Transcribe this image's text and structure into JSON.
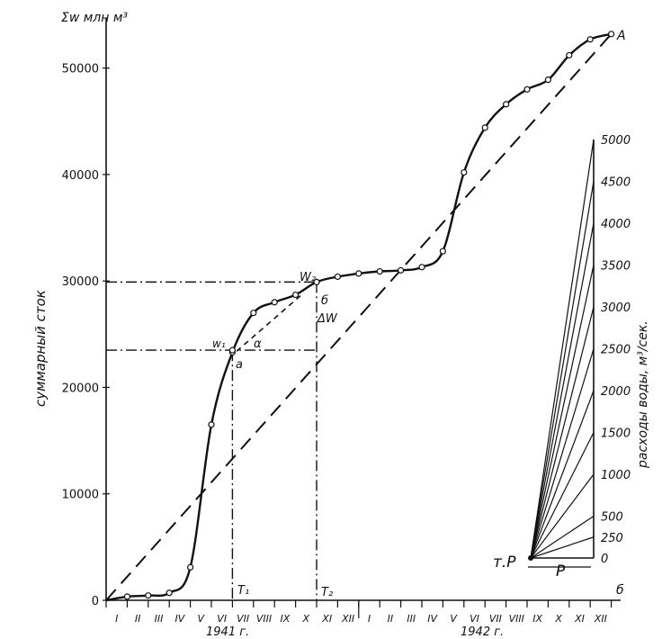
{
  "chart_data": {
    "type": "line",
    "y_axis_title": "Σw млн м³",
    "ylabel": "суммарный сток",
    "ylim": [
      0,
      54000
    ],
    "yticks": [
      0,
      10000,
      20000,
      30000,
      40000,
      50000
    ],
    "categories": [
      "I",
      "II",
      "III",
      "IV",
      "V",
      "VI",
      "VII",
      "VIII",
      "IX",
      "X",
      "XI",
      "XII",
      "I",
      "II",
      "III",
      "IV",
      "V",
      "VI",
      "VII",
      "VIII",
      "IX",
      "X",
      "XI",
      "XII"
    ],
    "year_labels": [
      "1941 г.",
      "1942 г."
    ],
    "cumulative_runoff": [
      0,
      350,
      450,
      700,
      3100,
      16500,
      23300,
      27000,
      28000,
      28700,
      29900,
      30400,
      30700,
      30900,
      31000,
      31300,
      32800,
      40200,
      44400,
      46600,
      48000,
      48900,
      51200,
      52700,
      53200
    ],
    "mean_line": {
      "from": [
        0,
        0
      ],
      "to": [
        24,
        53200
      ]
    },
    "tangent_segment": {
      "from_month": 6.2,
      "from_value": 23400,
      "to_month": 9.4,
      "to_value": 28900
    },
    "point_labels": {
      "w1": "w₁",
      "w2": "W₂",
      "a": "a",
      "b": "б",
      "alpha": "α",
      "delta_w": "ΔW",
      "t1": "T₁",
      "t2": "T₂"
    },
    "markers": {
      "w1": {
        "month": 6.0,
        "value": 23500
      },
      "w2": {
        "month": 10.0,
        "value": 29900
      }
    }
  },
  "scale": {
    "title": "расходы воды, м³/сек.",
    "pole_label": "т.P",
    "base_label": "P",
    "corner_label": "б",
    "end_label": "A",
    "values": [
      0,
      250,
      500,
      1000,
      1500,
      2000,
      2500,
      3000,
      3500,
      4000,
      4500,
      5000
    ],
    "labeled": [
      "0",
      "250",
      "500",
      "1000",
      "1500",
      "2000",
      "2500",
      "3000",
      "3500",
      "4000",
      "4500",
      "5000"
    ]
  }
}
